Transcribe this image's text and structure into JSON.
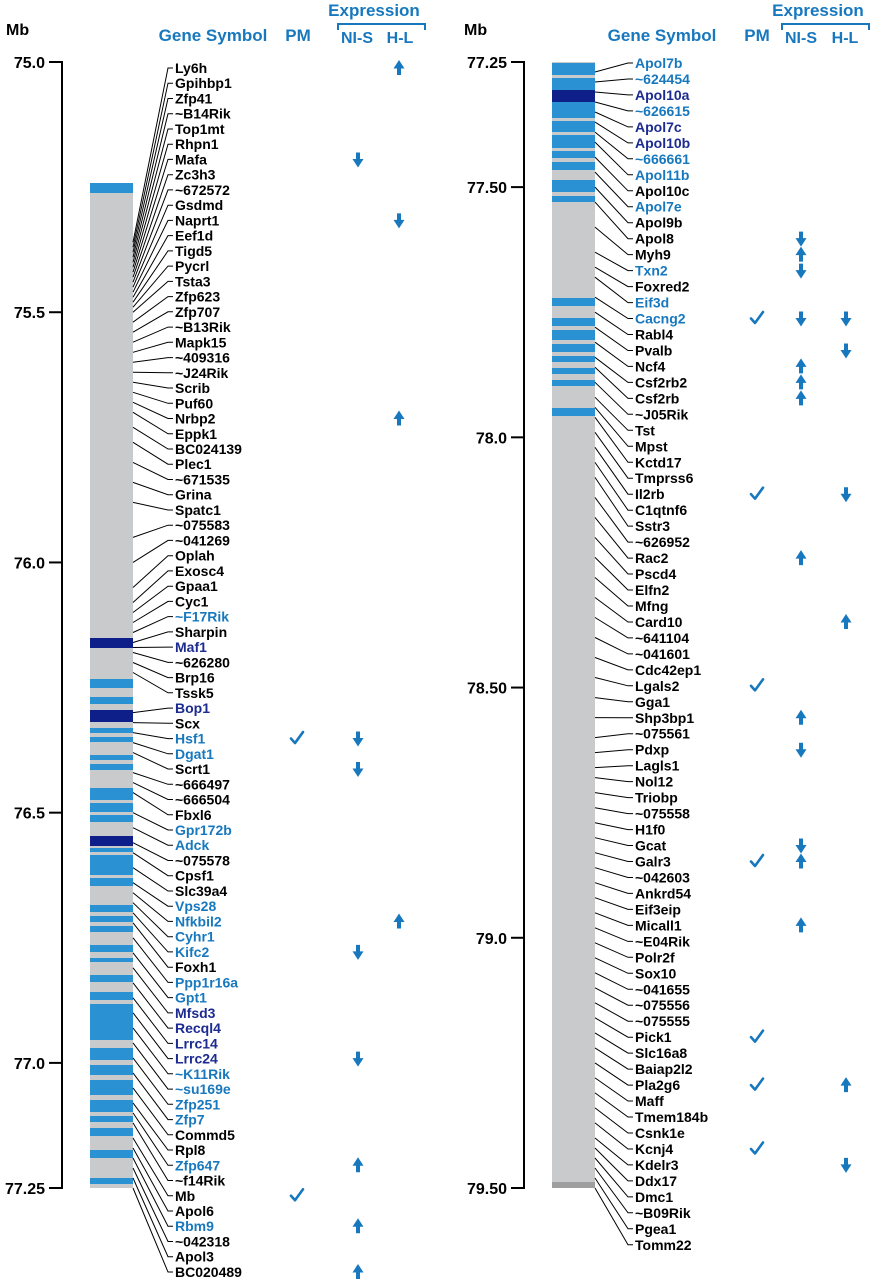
{
  "palette": {
    "blue": "#1878be",
    "navy": "#1b2b90",
    "band_blue": "#2a92d2",
    "band_navy": "#0f1f8a",
    "bar_gray": "#c9cacb",
    "band_gray": "#9e9e9e"
  },
  "headers": {
    "mb": "Mb",
    "gene_symbol": "Gene Symbol",
    "pm": "PM",
    "expression": "Expression",
    "nis": "NI-S",
    "hl": "H-L"
  },
  "panels": [
    {
      "axis": {
        "min": 75.0,
        "max": 77.25,
        "labels": [
          "75.0",
          "75.5",
          "76.0",
          "76.5",
          "77.0",
          "77.25"
        ],
        "values": [
          75.0,
          75.5,
          76.0,
          76.5,
          77.0,
          77.25
        ]
      },
      "bar": {
        "bands": [
          [
            183,
            10,
            "b"
          ],
          [
            638,
            10,
            "n"
          ],
          [
            679,
            9,
            "b"
          ],
          [
            697,
            7,
            "b"
          ],
          [
            710,
            12,
            "n"
          ],
          [
            728,
            5,
            "b"
          ],
          [
            737,
            5,
            "b"
          ],
          [
            755,
            5,
            "b"
          ],
          [
            764,
            6,
            "b"
          ],
          [
            788,
            12,
            "b"
          ],
          [
            803,
            9,
            "b"
          ],
          [
            815,
            7,
            "b"
          ],
          [
            836,
            10,
            "n"
          ],
          [
            848,
            4,
            "b"
          ],
          [
            855,
            20,
            "b"
          ],
          [
            878,
            8,
            "b"
          ],
          [
            905,
            7,
            "b"
          ],
          [
            916,
            6,
            "b"
          ],
          [
            926,
            6,
            "b"
          ],
          [
            945,
            7,
            "b"
          ],
          [
            958,
            4,
            "b"
          ],
          [
            975,
            7,
            "b"
          ],
          [
            992,
            8,
            "b"
          ],
          [
            1004,
            36,
            "b"
          ],
          [
            1048,
            12,
            "b"
          ],
          [
            1065,
            10,
            "b"
          ],
          [
            1080,
            15,
            "b"
          ],
          [
            1100,
            12,
            "b"
          ],
          [
            1116,
            6,
            "b"
          ],
          [
            1128,
            8,
            "b"
          ],
          [
            1150,
            8,
            "b"
          ],
          [
            1178,
            6,
            "b"
          ]
        ]
      },
      "genes": [
        {
          "s": "Ly6h",
          "c": "k",
          "hl": "up"
        },
        {
          "s": "Gpihbp1",
          "c": "k"
        },
        {
          "s": "Zfp41",
          "c": "k"
        },
        {
          "s": "~B14Rik",
          "c": "k"
        },
        {
          "s": "Top1mt",
          "c": "k"
        },
        {
          "s": "Rhpn1",
          "c": "k"
        },
        {
          "s": "Mafa",
          "c": "k",
          "nis": "down"
        },
        {
          "s": "Zc3h3",
          "c": "k"
        },
        {
          "s": "~672572",
          "c": "k"
        },
        {
          "s": "Gsdmd",
          "c": "k"
        },
        {
          "s": "Naprt1",
          "c": "k",
          "hl": "down"
        },
        {
          "s": "Eef1d",
          "c": "k"
        },
        {
          "s": "Tigd5",
          "c": "k"
        },
        {
          "s": "Pycrl",
          "c": "k"
        },
        {
          "s": "Tsta3",
          "c": "k"
        },
        {
          "s": "Zfp623",
          "c": "k"
        },
        {
          "s": "Zfp707",
          "c": "k"
        },
        {
          "s": "~B13Rik",
          "c": "k"
        },
        {
          "s": "Mapk15",
          "c": "k"
        },
        {
          "s": "~409316",
          "c": "k"
        },
        {
          "s": "~J24Rik",
          "c": "k"
        },
        {
          "s": "Scrib",
          "c": "k"
        },
        {
          "s": "Puf60",
          "c": "k"
        },
        {
          "s": "Nrbp2",
          "c": "k",
          "hl": "up"
        },
        {
          "s": "Eppk1",
          "c": "k"
        },
        {
          "s": "BC024139",
          "c": "k"
        },
        {
          "s": "Plec1",
          "c": "k"
        },
        {
          "s": "~671535",
          "c": "k"
        },
        {
          "s": "Grina",
          "c": "k"
        },
        {
          "s": "Spatc1",
          "c": "k"
        },
        {
          "s": "~075583",
          "c": "k"
        },
        {
          "s": "~041269",
          "c": "k"
        },
        {
          "s": "Oplah",
          "c": "k"
        },
        {
          "s": "Exosc4",
          "c": "k"
        },
        {
          "s": "Gpaa1",
          "c": "k"
        },
        {
          "s": "Cyc1",
          "c": "k"
        },
        {
          "s": "~F17Rik",
          "c": "b"
        },
        {
          "s": "Sharpin",
          "c": "k"
        },
        {
          "s": "Maf1",
          "c": "n"
        },
        {
          "s": "~626280",
          "c": "k"
        },
        {
          "s": "Brp16",
          "c": "k"
        },
        {
          "s": "Tssk5",
          "c": "k"
        },
        {
          "s": "Bop1",
          "c": "n"
        },
        {
          "s": "Scx",
          "c": "k"
        },
        {
          "s": "Hsf1",
          "c": "b",
          "pm": true,
          "nis": "down"
        },
        {
          "s": "Dgat1",
          "c": "b"
        },
        {
          "s": "Scrt1",
          "c": "k",
          "nis": "down"
        },
        {
          "s": "~666497",
          "c": "k"
        },
        {
          "s": "~666504",
          "c": "k"
        },
        {
          "s": "Fbxl6",
          "c": "k"
        },
        {
          "s": "Gpr172b",
          "c": "b"
        },
        {
          "s": "Adck",
          "c": "b"
        },
        {
          "s": "~075578",
          "c": "k"
        },
        {
          "s": "Cpsf1",
          "c": "k"
        },
        {
          "s": "Slc39a4",
          "c": "k"
        },
        {
          "s": "Vps28",
          "c": "b"
        },
        {
          "s": "Nfkbil2",
          "c": "b",
          "hl": "up"
        },
        {
          "s": "Cyhr1",
          "c": "b"
        },
        {
          "s": "Kifc2",
          "c": "b",
          "nis": "down"
        },
        {
          "s": "Foxh1",
          "c": "k"
        },
        {
          "s": "Ppp1r16a",
          "c": "b"
        },
        {
          "s": "Gpt1",
          "c": "b"
        },
        {
          "s": "Mfsd3",
          "c": "n"
        },
        {
          "s": "Recql4",
          "c": "n"
        },
        {
          "s": "Lrrc14",
          "c": "n"
        },
        {
          "s": "Lrrc24",
          "c": "n",
          "nis": "down"
        },
        {
          "s": "~K11Rik",
          "c": "b"
        },
        {
          "s": "~su169e",
          "c": "b"
        },
        {
          "s": "Zfp251",
          "c": "b"
        },
        {
          "s": "Zfp7",
          "c": "b"
        },
        {
          "s": "Commd5",
          "c": "k"
        },
        {
          "s": "Rpl8",
          "c": "k"
        },
        {
          "s": "Zfp647",
          "c": "b",
          "nis": "up"
        },
        {
          "s": "~f14Rik",
          "c": "k"
        },
        {
          "s": "Mb",
          "c": "k",
          "pm": true
        },
        {
          "s": "Apol6",
          "c": "k"
        },
        {
          "s": "Rbm9",
          "c": "b",
          "nis": "up"
        },
        {
          "s": "~042318",
          "c": "k"
        },
        {
          "s": "Apol3",
          "c": "k"
        },
        {
          "s": "BC020489",
          "c": "k",
          "nis": "up"
        }
      ]
    },
    {
      "axis": {
        "min": 77.25,
        "max": 79.5,
        "labels": [
          "77.25",
          "77.50",
          "78.0",
          "78.50",
          "79.0",
          "79.50"
        ],
        "values": [
          77.25,
          77.5,
          78.0,
          78.5,
          79.0,
          79.5
        ]
      },
      "bar": {
        "bands": [
          [
            63,
            12,
            "b"
          ],
          [
            78,
            12,
            "b"
          ],
          [
            90,
            12,
            "n"
          ],
          [
            102,
            16,
            "b"
          ],
          [
            121,
            11,
            "b"
          ],
          [
            135,
            13,
            "b"
          ],
          [
            151,
            7,
            "b"
          ],
          [
            162,
            8,
            "b"
          ],
          [
            180,
            12,
            "b"
          ],
          [
            196,
            6,
            "b"
          ],
          [
            298,
            8,
            "b"
          ],
          [
            318,
            8,
            "b"
          ],
          [
            330,
            10,
            "b"
          ],
          [
            344,
            8,
            "b"
          ],
          [
            356,
            6,
            "b"
          ],
          [
            368,
            6,
            "b"
          ],
          [
            380,
            6,
            "b"
          ],
          [
            408,
            8,
            "b"
          ],
          [
            1182,
            6,
            "g"
          ]
        ]
      },
      "genes": [
        {
          "s": "Apol7b",
          "c": "b"
        },
        {
          "s": "~624454",
          "c": "b"
        },
        {
          "s": "Apol10a",
          "c": "n"
        },
        {
          "s": "~626615",
          "c": "b"
        },
        {
          "s": "Apol7c",
          "c": "n"
        },
        {
          "s": "Apol10b",
          "c": "n"
        },
        {
          "s": "~666661",
          "c": "b"
        },
        {
          "s": "Apol11b",
          "c": "b"
        },
        {
          "s": "Apol10c",
          "c": "k"
        },
        {
          "s": "Apol7e",
          "c": "b"
        },
        {
          "s": "Apol9b",
          "c": "k"
        },
        {
          "s": "Apol8",
          "c": "k",
          "nis": "down"
        },
        {
          "s": "Myh9",
          "c": "k",
          "nis": "up"
        },
        {
          "s": "Txn2",
          "c": "b",
          "nis": "down"
        },
        {
          "s": "Foxred2",
          "c": "k"
        },
        {
          "s": "Eif3d",
          "c": "b"
        },
        {
          "s": "Cacng2",
          "c": "b",
          "pm": true,
          "nis": "down",
          "hl": "down"
        },
        {
          "s": "Rabl4",
          "c": "k"
        },
        {
          "s": "Pvalb",
          "c": "k",
          "hl": "down"
        },
        {
          "s": "Ncf4",
          "c": "k",
          "nis": "up"
        },
        {
          "s": "Csf2rb2",
          "c": "k",
          "nis": "up"
        },
        {
          "s": "Csf2rb",
          "c": "k",
          "nis": "up"
        },
        {
          "s": "~J05Rik",
          "c": "k"
        },
        {
          "s": "Tst",
          "c": "k"
        },
        {
          "s": "Mpst",
          "c": "k"
        },
        {
          "s": "Kctd17",
          "c": "k"
        },
        {
          "s": "Tmprss6",
          "c": "k"
        },
        {
          "s": "Il2rb",
          "c": "k",
          "pm": true,
          "hl": "down"
        },
        {
          "s": "C1qtnf6",
          "c": "k"
        },
        {
          "s": "Sstr3",
          "c": "k"
        },
        {
          "s": "~626952",
          "c": "k"
        },
        {
          "s": "Rac2",
          "c": "k",
          "nis": "up"
        },
        {
          "s": "Pscd4",
          "c": "k"
        },
        {
          "s": "Elfn2",
          "c": "k"
        },
        {
          "s": "Mfng",
          "c": "k"
        },
        {
          "s": "Card10",
          "c": "k",
          "hl": "up"
        },
        {
          "s": "~641104",
          "c": "k"
        },
        {
          "s": "~041601",
          "c": "k"
        },
        {
          "s": "Cdc42ep1",
          "c": "k"
        },
        {
          "s": "Lgals2",
          "c": "k",
          "pm": true
        },
        {
          "s": "Gga1",
          "c": "k"
        },
        {
          "s": "Shp3bp1",
          "c": "k",
          "nis": "up"
        },
        {
          "s": "~075561",
          "c": "k"
        },
        {
          "s": "Pdxp",
          "c": "k",
          "nis": "down"
        },
        {
          "s": "Lagls1",
          "c": "k"
        },
        {
          "s": "Nol12",
          "c": "k"
        },
        {
          "s": "Triobp",
          "c": "k"
        },
        {
          "s": "~075558",
          "c": "k"
        },
        {
          "s": "H1f0",
          "c": "k"
        },
        {
          "s": "Gcat",
          "c": "k",
          "nis": "down"
        },
        {
          "s": "Galr3",
          "c": "k",
          "pm": true,
          "nis": "up"
        },
        {
          "s": "~042603",
          "c": "k"
        },
        {
          "s": "Ankrd54",
          "c": "k"
        },
        {
          "s": "Eif3eip",
          "c": "k"
        },
        {
          "s": "Micall1",
          "c": "k",
          "nis": "up"
        },
        {
          "s": "~E04Rik",
          "c": "k"
        },
        {
          "s": "Polr2f",
          "c": "k"
        },
        {
          "s": "Sox10",
          "c": "k"
        },
        {
          "s": "~041655",
          "c": "k"
        },
        {
          "s": "~075556",
          "c": "k"
        },
        {
          "s": "~075555",
          "c": "k"
        },
        {
          "s": "Pick1",
          "c": "k",
          "pm": true
        },
        {
          "s": "Slc16a8",
          "c": "k"
        },
        {
          "s": "Baiap2l2",
          "c": "k"
        },
        {
          "s": "Pla2g6",
          "c": "k",
          "pm": true,
          "hl": "up"
        },
        {
          "s": "Maff",
          "c": "k"
        },
        {
          "s": "Tmem184b",
          "c": "k"
        },
        {
          "s": "Csnk1e",
          "c": "k"
        },
        {
          "s": "Kcnj4",
          "c": "k",
          "pm": true
        },
        {
          "s": "Kdelr3",
          "c": "k",
          "hl": "down"
        },
        {
          "s": "Ddx17",
          "c": "k"
        },
        {
          "s": "Dmc1",
          "c": "k"
        },
        {
          "s": "~B09Rik",
          "c": "k"
        },
        {
          "s": "Pgea1",
          "c": "k"
        },
        {
          "s": "Tomm22",
          "c": "k"
        }
      ]
    }
  ]
}
